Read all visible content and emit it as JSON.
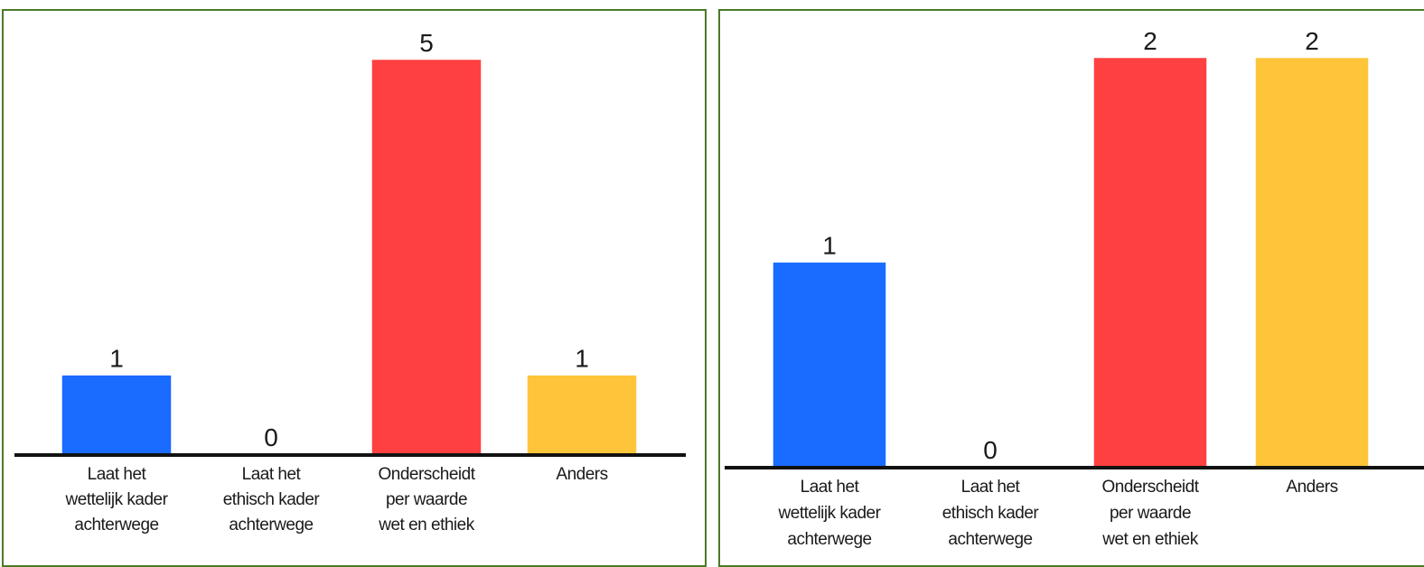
{
  "chart_data": [
    {
      "type": "bar",
      "categories": [
        "Laat het wettelijk kader achterwege",
        "Laat het ethisch kader achterwege",
        "Onderscheidt per waarde wet en ethiek",
        "Anders"
      ],
      "category_lines": [
        [
          "Laat het",
          "wettelijk kader",
          "achterwege"
        ],
        [
          "Laat het",
          "ethisch kader",
          "achterwege"
        ],
        [
          "Onderscheidt",
          "per waarde",
          "wet en ethiek"
        ],
        [
          "Anders"
        ]
      ],
      "values": [
        1,
        0,
        5,
        1
      ],
      "colors": [
        "#1a6bff",
        "#1a6bff",
        "#ff4040",
        "#ffc53a"
      ],
      "ylim": [
        0,
        5
      ],
      "grid": false,
      "legend": "none"
    },
    {
      "type": "bar",
      "categories": [
        "Laat het wettelijk kader achterwege",
        "Laat het ethisch kader achterwege",
        "Onderscheidt per waarde wet en ethiek",
        "Anders"
      ],
      "category_lines": [
        [
          "Laat het",
          "wettelijk kader",
          "achterwege"
        ],
        [
          "Laat het",
          "ethisch kader",
          "achterwege"
        ],
        [
          "Onderscheidt",
          "per waarde",
          "wet en ethiek"
        ],
        [
          "Anders"
        ]
      ],
      "values": [
        1,
        0,
        2,
        2
      ],
      "colors": [
        "#1a6bff",
        "#1a6bff",
        "#ff4040",
        "#ffc53a"
      ],
      "ylim": [
        0,
        2
      ],
      "grid": false,
      "legend": "none"
    }
  ]
}
